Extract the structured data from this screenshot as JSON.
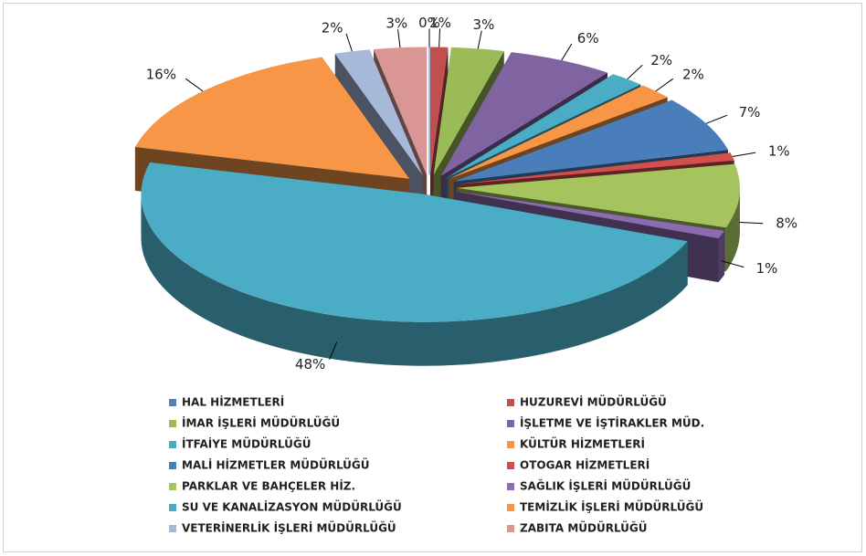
{
  "chart_data": {
    "type": "pie3d",
    "categories": [
      "HAL HİZMETLERİ",
      "HUZUREVİ MÜDÜRLÜĞÜ",
      "İMAR İŞLERİ MÜDÜRLÜĞÜ",
      "İŞLETME VE İŞTİRAKLER MÜD.",
      "İTFAİYE MÜDÜRLÜĞÜ",
      "KÜLTÜR HİZMETLERİ",
      "MALİ HİZMETLER MÜDÜRLÜĞÜ",
      "OTOGAR HİZMETLERİ",
      "PARKLAR VE BAHÇELER HİZ.",
      "SAĞLIK İŞLERİ MÜDÜRLÜĞÜ",
      "SU VE KANALİZASYON MÜDÜRLÜĞÜ",
      "TEMİZLİK İŞLERİ MÜDÜRLÜĞÜ",
      "VETERİNERLİK İŞLERİ MÜDÜRLÜĞÜ",
      "ZABITA MÜDÜRLÜĞÜ"
    ],
    "values": [
      0,
      1,
      3,
      6,
      2,
      2,
      7,
      1,
      8,
      1,
      48,
      16,
      2,
      3
    ],
    "value_labels": [
      "0%",
      "1%",
      "3%",
      "6%",
      "2%",
      "2%",
      "7%",
      "1%",
      "8%",
      "1%",
      "48%",
      "16%",
      "2%",
      "3%"
    ],
    "colors": [
      "#4f81bd",
      "#c0504d",
      "#9bbb59",
      "#8064a2",
      "#4bacc6",
      "#f79646",
      "#4a7ebb",
      "#d0504d",
      "#a5c45e",
      "#8c6cb0",
      "#4bacc6",
      "#f79646",
      "#a7b9d9",
      "#d99694"
    ],
    "legend": "bottom"
  }
}
